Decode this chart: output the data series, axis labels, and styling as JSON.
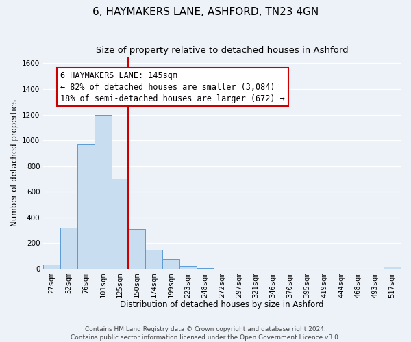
{
  "title": "6, HAYMAKERS LANE, ASHFORD, TN23 4GN",
  "subtitle": "Size of property relative to detached houses in Ashford",
  "xlabel": "Distribution of detached houses by size in Ashford",
  "ylabel": "Number of detached properties",
  "footer_line1": "Contains HM Land Registry data © Crown copyright and database right 2024.",
  "footer_line2": "Contains public sector information licensed under the Open Government Licence v3.0.",
  "bin_labels": [
    "27sqm",
    "52sqm",
    "76sqm",
    "101sqm",
    "125sqm",
    "150sqm",
    "174sqm",
    "199sqm",
    "223sqm",
    "248sqm",
    "272sqm",
    "297sqm",
    "321sqm",
    "346sqm",
    "370sqm",
    "395sqm",
    "419sqm",
    "444sqm",
    "468sqm",
    "493sqm",
    "517sqm"
  ],
  "bar_values": [
    30,
    320,
    970,
    1200,
    700,
    310,
    150,
    75,
    20,
    5,
    0,
    0,
    0,
    0,
    0,
    0,
    0,
    0,
    0,
    0,
    15
  ],
  "bar_color": "#c9ddf0",
  "bar_edge_color": "#5b9bd5",
  "ylim": [
    0,
    1650
  ],
  "yticks": [
    0,
    200,
    400,
    600,
    800,
    1000,
    1200,
    1400,
    1600
  ],
  "vline_x_idx": 4.5,
  "vline_color": "#cc0000",
  "annotation_line1": "6 HAYMAKERS LANE: 145sqm",
  "annotation_line2": "← 82% of detached houses are smaller (3,084)",
  "annotation_line3": "18% of semi-detached houses are larger (672) →",
  "annotation_border_color": "#cc0000",
  "background_color": "#edf2f9",
  "grid_color": "#ffffff",
  "title_fontsize": 11,
  "subtitle_fontsize": 9.5,
  "annotation_fontsize": 8.5,
  "axis_label_fontsize": 8.5,
  "tick_label_fontsize": 7.5,
  "footer_fontsize": 6.5
}
